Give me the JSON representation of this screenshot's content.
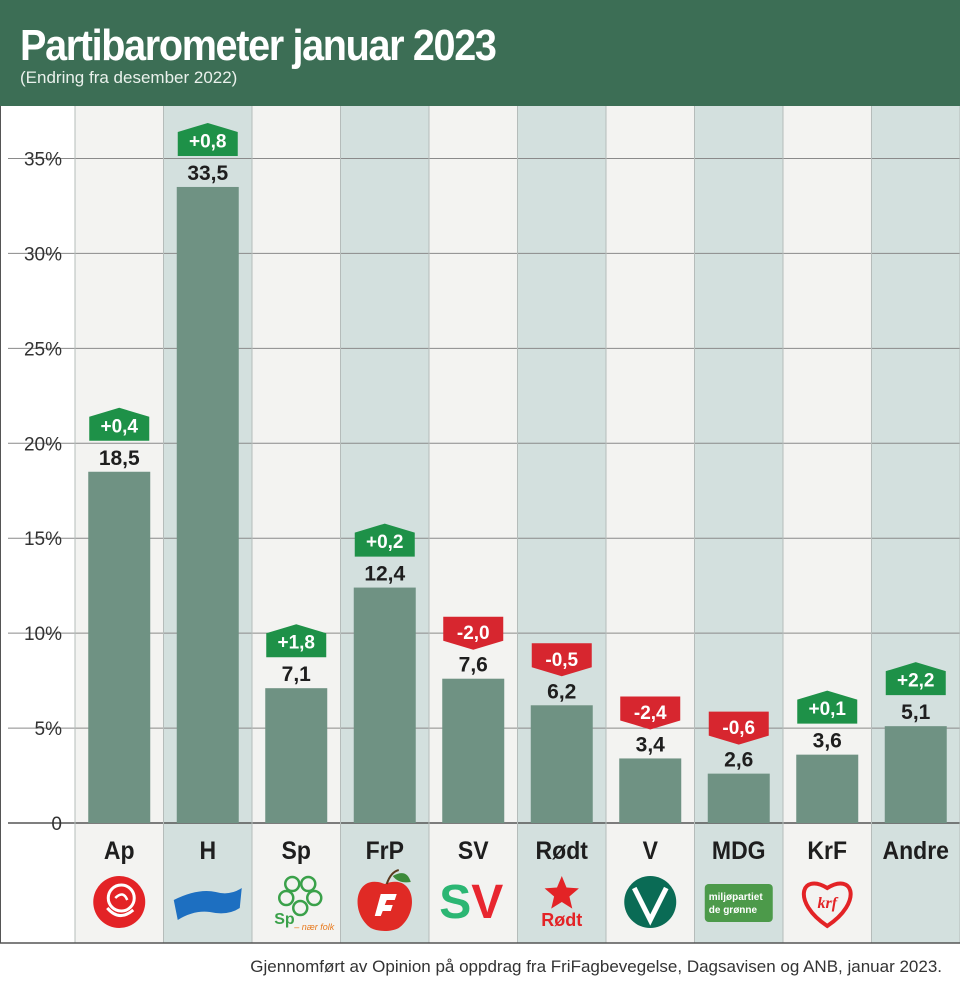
{
  "header": {
    "title": "Partibarometer januar 2023",
    "subtitle": "(Endring fra desember 2022)"
  },
  "chart_data": {
    "type": "bar",
    "title": "Partibarometer januar 2023",
    "subtitle": "(Endring fra desember 2022)",
    "categories": [
      "Ap",
      "H",
      "Sp",
      "FrP",
      "SV",
      "Rødt",
      "V",
      "MDG",
      "KrF",
      "Andre"
    ],
    "values": [
      18.5,
      33.5,
      7.1,
      12.4,
      7.6,
      6.2,
      3.4,
      2.6,
      3.6,
      5.1
    ],
    "value_labels": [
      "18,5",
      "33,5",
      "7,1",
      "12,4",
      "7,6",
      "6,2",
      "3,4",
      "2,6",
      "3,6",
      "5,1"
    ],
    "changes": [
      0.4,
      0.8,
      1.8,
      0.2,
      -2.0,
      -0.5,
      -2.4,
      -0.6,
      0.1,
      2.2
    ],
    "change_labels": [
      "+0,4",
      "+0,8",
      "+1,8",
      "+0,2",
      "-2,0",
      "-0,5",
      "-2,4",
      "-0,6",
      "+0,1",
      "+2,2"
    ],
    "ylim": [
      0,
      36.5
    ],
    "yticks": [
      0,
      5,
      10,
      15,
      20,
      25,
      30,
      35
    ],
    "ytick_labels": [
      "0",
      "5%",
      "10%",
      "15%",
      "20%",
      "25%",
      "30%",
      "35%"
    ],
    "grid": true,
    "legend": "none"
  },
  "logos": [
    {
      "party": "Ap",
      "icon": "rose-icon"
    },
    {
      "party": "H",
      "icon": "blue-flag-icon"
    },
    {
      "party": "Sp",
      "icon": "clover-icon",
      "text": "Sp",
      "tagline": "– nær folk"
    },
    {
      "party": "FrP",
      "icon": "apple-icon"
    },
    {
      "party": "SV",
      "icon": "sv-logo-icon",
      "text": "SV"
    },
    {
      "party": "Rødt",
      "icon": "red-star-icon",
      "text": "Rødt"
    },
    {
      "party": "V",
      "icon": "v-circle-icon"
    },
    {
      "party": "MDG",
      "icon": "mdg-badge-icon",
      "text": "miljøpartiet de grønne"
    },
    {
      "party": "KrF",
      "icon": "heart-icon",
      "text": "krf"
    },
    {
      "party": "Andre",
      "icon": ""
    }
  ],
  "colors": {
    "header": "#3c6e55",
    "bar": "#6f9283",
    "col_light": "#f3f3f1",
    "col_dark": "#d3e0de",
    "grid": "#8a8a8a",
    "positive": "#1e9148",
    "negative": "#d7262f",
    "sv": "#2bb673",
    "sv_v": "#e8262f",
    "mdg": "#4c9a4a",
    "v_green": "#0a6b55",
    "h_blue": "#1d6fc1",
    "red": "#e32326"
  },
  "footer": {
    "note": "Gjennomført av Opinion på oppdrag fra FriFagbevegelse, Dagsavisen og ANB, januar 2023."
  }
}
